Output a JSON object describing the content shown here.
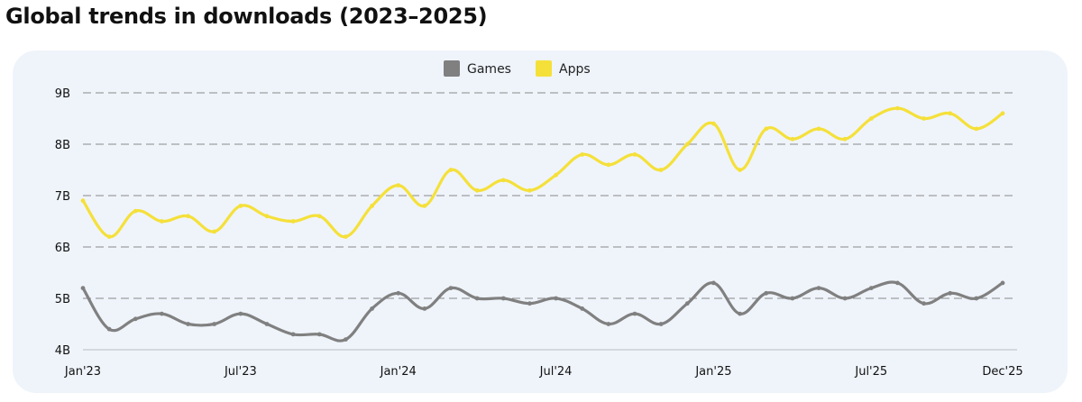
{
  "title": "Global trends in downloads (2023–2025)",
  "chart_data": {
    "type": "line",
    "title": "Global trends in downloads (2023–2025)",
    "xlabel": "",
    "ylabel": "",
    "x": [
      "Jan'23",
      "Feb'23",
      "Mar'23",
      "Apr'23",
      "May'23",
      "Jun'23",
      "Jul'23",
      "Aug'23",
      "Sep'23",
      "Oct'23",
      "Nov'23",
      "Dec'23",
      "Jan'24",
      "Feb'24",
      "Mar'24",
      "Apr'24",
      "May'24",
      "Jun'24",
      "Jul'24",
      "Aug'24",
      "Sep'24",
      "Oct'24",
      "Nov'24",
      "Dec'24",
      "Jan'25",
      "Feb'25",
      "Mar'25",
      "Apr'25",
      "May'25",
      "Jun'25",
      "Jul'25",
      "Aug'25",
      "Sep'25",
      "Oct'25",
      "Nov'25",
      "Dec'25"
    ],
    "x_tick_labels": [
      "Jan'23",
      "Jul'23",
      "Jan'24",
      "Jul'24",
      "Jan'25",
      "Jul'25",
      "Dec'25"
    ],
    "x_tick_indices": [
      0,
      6,
      12,
      18,
      24,
      30,
      35
    ],
    "y_tick_labels": [
      "4B",
      "5B",
      "6B",
      "7B",
      "8B",
      "9B"
    ],
    "y_tick_values": [
      4,
      5,
      6,
      7,
      8,
      9
    ],
    "ylim": [
      4,
      9
    ],
    "y_unit": "billions",
    "grid": "horizontal dashed",
    "legend_position": "top-center",
    "series": [
      {
        "name": "Games",
        "color": "#808080",
        "values": [
          5.2,
          4.4,
          4.6,
          4.7,
          4.5,
          4.5,
          4.7,
          4.5,
          4.3,
          4.3,
          4.2,
          4.8,
          5.1,
          4.8,
          5.2,
          5.0,
          5.0,
          4.9,
          5.0,
          4.8,
          4.5,
          4.7,
          4.5,
          4.9,
          5.3,
          4.7,
          5.1,
          5.0,
          5.2,
          5.0,
          5.2,
          5.3,
          4.9,
          5.1,
          5.0,
          5.3
        ]
      },
      {
        "name": "Apps",
        "color": "#f5e03a",
        "values": [
          6.9,
          6.2,
          6.7,
          6.5,
          6.6,
          6.3,
          6.8,
          6.6,
          6.5,
          6.6,
          6.2,
          6.8,
          7.2,
          6.8,
          7.5,
          7.1,
          7.3,
          7.1,
          7.4,
          7.8,
          7.6,
          7.8,
          7.5,
          8.0,
          8.4,
          7.5,
          8.3,
          8.1,
          8.3,
          8.1,
          8.5,
          8.7,
          8.5,
          8.6,
          8.3,
          8.6
        ]
      }
    ]
  }
}
